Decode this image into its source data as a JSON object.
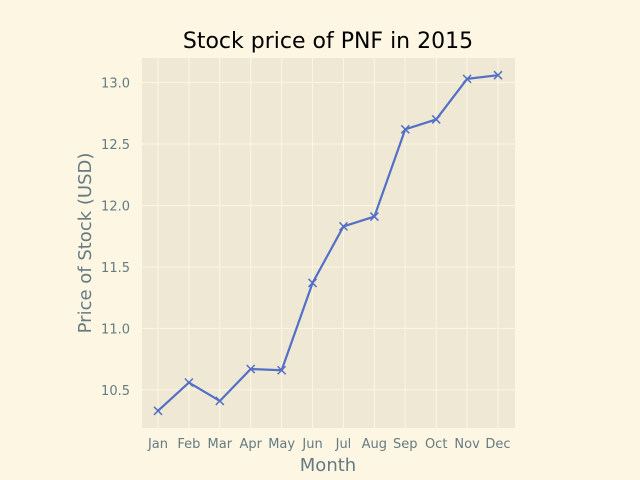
{
  "chart_data": {
    "type": "line",
    "title": "Stock price of PNF in 2015",
    "xlabel": "Month",
    "ylabel": "Price of Stock (USD)",
    "categories": [
      "Jan",
      "Feb",
      "Mar",
      "Apr",
      "May",
      "Jun",
      "Jul",
      "Aug",
      "Sep",
      "Oct",
      "Nov",
      "Dec"
    ],
    "series": [
      {
        "values": [
          10.33,
          10.56,
          10.41,
          10.67,
          10.66,
          11.37,
          11.83,
          11.91,
          12.62,
          12.7,
          13.03,
          13.06
        ],
        "color": "#5470c6",
        "marker": "x"
      }
    ],
    "yticks": [
      10.5,
      11.0,
      11.5,
      12.0,
      12.5,
      13.0
    ],
    "ytick_labels": [
      "10.5",
      "11.0",
      "11.5",
      "12.0",
      "12.5",
      "13.0"
    ],
    "ylim": [
      10.19,
      13.2
    ],
    "grid": true,
    "colors": {
      "page_background": "#fdf6e3",
      "plot_background": "#eee8d5",
      "grid": "#fdf6e3",
      "text": "#657b83",
      "title": "#000000"
    }
  }
}
